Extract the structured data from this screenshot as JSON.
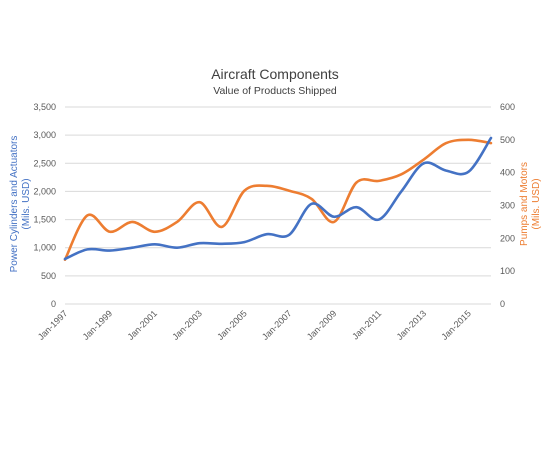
{
  "chart_data": {
    "type": "line",
    "title": "Aircraft Components",
    "subtitle": "Value of Products Shipped",
    "xlabel": "",
    "x_tick_labels": [
      "Jan-1997",
      "Jan-1999",
      "Jan-2001",
      "Jan-2003",
      "Jan-2005",
      "Jan-2007",
      "Jan-2009",
      "Jan-2011",
      "Jan-2013",
      "Jan-2015"
    ],
    "x_range": [
      1997,
      2016
    ],
    "y_left": {
      "label_line1": "Power Cylinders and Actuators",
      "label_line2": "(Mils. USD)",
      "ylim": [
        0,
        3500
      ],
      "ticks": [
        "0",
        "500",
        "1,000",
        "1,500",
        "2,000",
        "2,500",
        "3,000",
        "3,500"
      ],
      "tick_values": [
        0,
        500,
        1000,
        1500,
        2000,
        2500,
        3000,
        3500
      ],
      "color": "#4472C4"
    },
    "y_right": {
      "label_line1": "Pumps and Motors",
      "label_line2": "(Mils. USD)",
      "ylim": [
        0,
        600
      ],
      "ticks": [
        "0",
        "100",
        "200",
        "300",
        "400",
        "500",
        "600"
      ],
      "tick_values": [
        0,
        100,
        200,
        300,
        400,
        500,
        600
      ],
      "color": "#ED7D31"
    },
    "grid": true,
    "series": [
      {
        "axis": "left",
        "color": "#4472C4",
        "x": [
          1997,
          1998,
          1999,
          2000,
          2001,
          2002,
          2003,
          2004,
          2005,
          2006,
          2007,
          2008,
          2009,
          2010,
          2011,
          2012,
          2013,
          2014,
          2015,
          2016
        ],
        "values": [
          800,
          970,
          950,
          1000,
          1060,
          1000,
          1080,
          1070,
          1100,
          1240,
          1230,
          1780,
          1550,
          1720,
          1500,
          2000,
          2500,
          2370,
          2350,
          2950
        ]
      },
      {
        "axis": "right",
        "color": "#ED7D31",
        "x": [
          1997,
          1998,
          1999,
          2000,
          2001,
          2002,
          2003,
          2004,
          2005,
          2006,
          2007,
          2008,
          2009,
          2010,
          2011,
          2012,
          2013,
          2014,
          2015,
          2016
        ],
        "values": [
          135,
          270,
          220,
          250,
          220,
          250,
          310,
          235,
          345,
          360,
          345,
          320,
          250,
          370,
          375,
          395,
          440,
          490,
          500,
          490
        ]
      }
    ]
  }
}
